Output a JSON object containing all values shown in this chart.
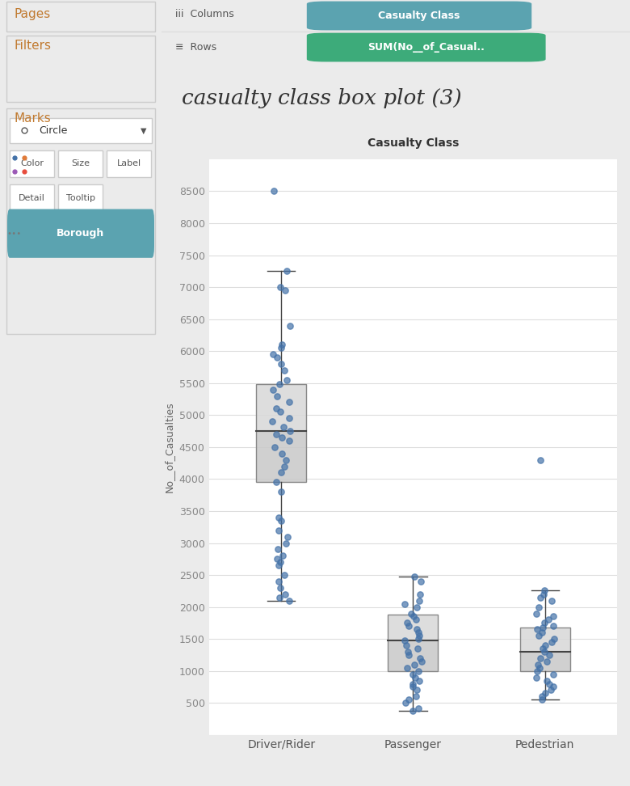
{
  "title": "casualty class box plot (3)",
  "col_label": "Casualty Class",
  "col_pill_color": "#5BA3B0",
  "row_label": "SUM(No__of_Casual..",
  "row_pill_color": "#3DAB7A",
  "categories": [
    "Driver/Rider",
    "Passenger",
    "Pedestrian"
  ],
  "ylabel": "No__of_Casualties",
  "xlabel_top": "Casualty Class",
  "ylim": [
    0,
    9000
  ],
  "yticks": [
    0,
    500,
    1000,
    1500,
    2000,
    2500,
    3000,
    3500,
    4000,
    4500,
    5000,
    5500,
    6000,
    6500,
    7000,
    7500,
    8000,
    8500
  ],
  "box_stats": {
    "Driver/Rider": {
      "q1": 3950,
      "median": 4750,
      "q3": 5480,
      "whisker_low": 2100,
      "whisker_high": 7250
    },
    "Passenger": {
      "q1": 1000,
      "median": 1480,
      "q3": 1880,
      "whisker_low": 380,
      "whisker_high": 2480
    },
    "Pedestrian": {
      "q1": 1000,
      "median": 1300,
      "q3": 1680,
      "whisker_low": 560,
      "whisker_high": 2260
    }
  },
  "dot_color": "#4472A8",
  "dot_alpha": 0.7,
  "dots": {
    "Driver/Rider": [
      8500,
      7250,
      7000,
      6950,
      6400,
      6100,
      6050,
      5950,
      5900,
      5800,
      5700,
      5550,
      5480,
      5400,
      5300,
      5200,
      5100,
      5050,
      4950,
      4900,
      4820,
      4750,
      4700,
      4650,
      4600,
      4500,
      4400,
      4300,
      4200,
      4100,
      3950,
      3800,
      3400,
      3350,
      3200,
      3100,
      3000,
      2900,
      2800,
      2750,
      2700,
      2650,
      2500,
      2400,
      2300,
      2200,
      2150,
      2100
    ],
    "Passenger": [
      2480,
      2400,
      2200,
      2100,
      2050,
      2000,
      1900,
      1850,
      1800,
      1750,
      1700,
      1650,
      1600,
      1550,
      1500,
      1480,
      1400,
      1350,
      1300,
      1250,
      1200,
      1150,
      1100,
      1050,
      1000,
      950,
      900,
      850,
      800,
      750,
      700,
      600,
      550,
      500,
      420,
      380
    ],
    "Pedestrian": [
      4300,
      2260,
      2200,
      2150,
      2100,
      2000,
      1900,
      1850,
      1800,
      1750,
      1700,
      1680,
      1650,
      1600,
      1550,
      1500,
      1450,
      1400,
      1350,
      1300,
      1250,
      1200,
      1150,
      1100,
      1050,
      1000,
      950,
      900,
      850,
      800,
      750,
      700,
      650,
      600,
      560
    ]
  },
  "panel_bg": "#EBEBEB",
  "chart_bg": "#FFFFFF",
  "orange_label_color": "#C17A30",
  "pages_label": "Pages",
  "filters_label": "Filters",
  "marks_label": "Marks",
  "circle_label": "Circle",
  "color_label": "Color",
  "size_label": "Size",
  "lbl_label": "Label",
  "detail_label": "Detail",
  "tooltip_label": "Tooltip",
  "borough_label": "Borough",
  "header_bg": "#F5F5F5",
  "sidebar_border": "#CCCCCC"
}
